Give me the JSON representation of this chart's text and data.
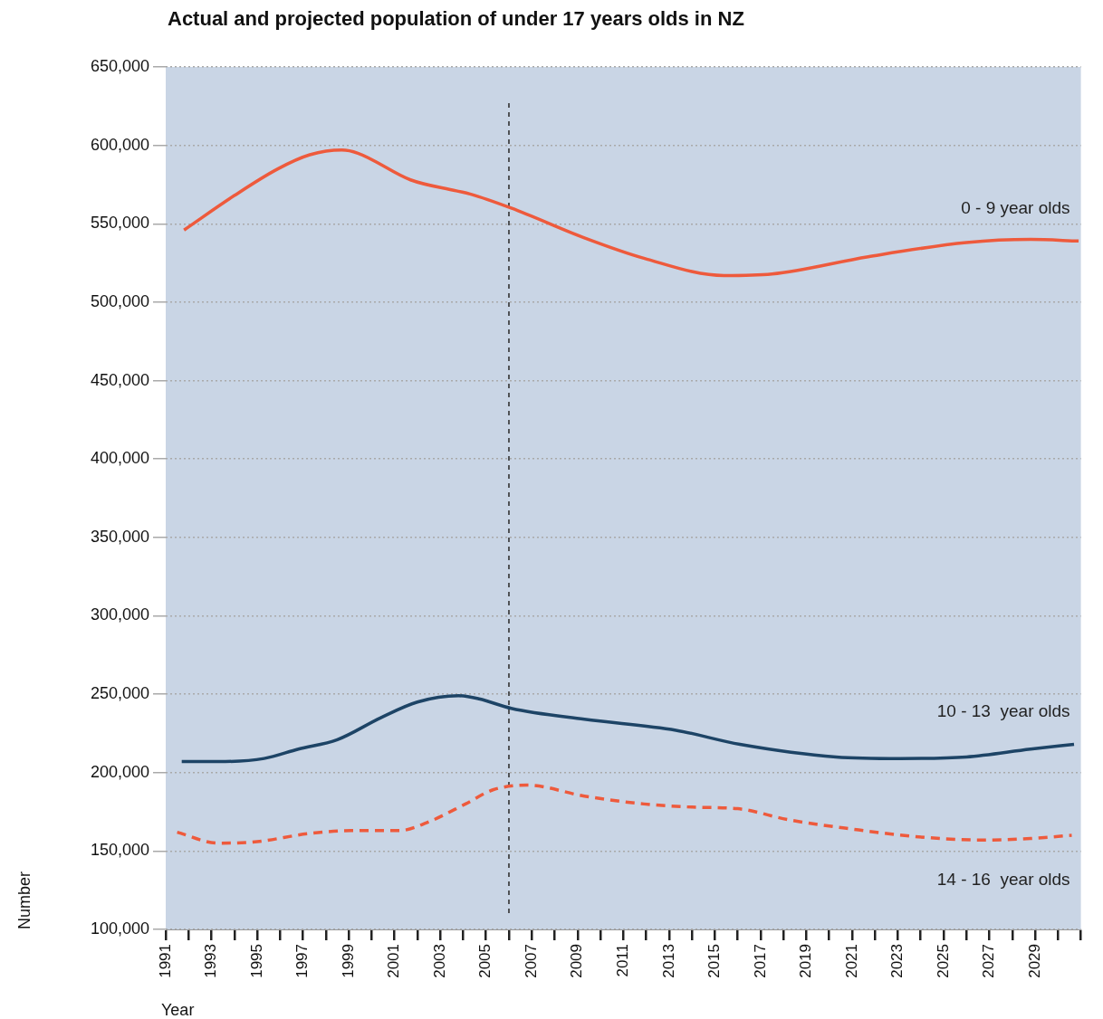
{
  "chart_data": {
    "type": "line",
    "title": "Actual and projected population of under 17 years olds in NZ",
    "xlabel": "Year",
    "ylabel": "Number",
    "xlim": [
      1991,
      2031
    ],
    "xticks": [
      {
        "value": 1991,
        "label": "1991"
      },
      {
        "value": 1992,
        "label": null
      },
      {
        "value": 1993,
        "label": "1993"
      },
      {
        "value": 1994,
        "label": null
      },
      {
        "value": 1995,
        "label": "1995"
      },
      {
        "value": 1996,
        "label": null
      },
      {
        "value": 1997,
        "label": "1997"
      },
      {
        "value": 1998,
        "label": null
      },
      {
        "value": 1999,
        "label": "1999"
      },
      {
        "value": 2000,
        "label": null
      },
      {
        "value": 2001,
        "label": "2001"
      },
      {
        "value": 2002,
        "label": null
      },
      {
        "value": 2003,
        "label": "2003"
      },
      {
        "value": 2004,
        "label": null
      },
      {
        "value": 2005,
        "label": "2005"
      },
      {
        "value": 2006,
        "label": null
      },
      {
        "value": 2007,
        "label": "2007"
      },
      {
        "value": 2008,
        "label": null
      },
      {
        "value": 2009,
        "label": "2009"
      },
      {
        "value": 2010,
        "label": null
      },
      {
        "value": 2011,
        "label": "2011"
      },
      {
        "value": 2012,
        "label": null
      },
      {
        "value": 2013,
        "label": "2013"
      },
      {
        "value": 2014,
        "label": null
      },
      {
        "value": 2015,
        "label": "2015"
      },
      {
        "value": 2016,
        "label": null
      },
      {
        "value": 2017,
        "label": "2017"
      },
      {
        "value": 2018,
        "label": null
      },
      {
        "value": 2019,
        "label": "2019"
      },
      {
        "value": 2020,
        "label": null
      },
      {
        "value": 2021,
        "label": "2021"
      },
      {
        "value": 2022,
        "label": null
      },
      {
        "value": 2023,
        "label": "2023"
      },
      {
        "value": 2024,
        "label": null
      },
      {
        "value": 2025,
        "label": "2025"
      },
      {
        "value": 2026,
        "label": null
      },
      {
        "value": 2027,
        "label": "2027"
      },
      {
        "value": 2028,
        "label": null
      },
      {
        "value": 2029,
        "label": "2029"
      },
      {
        "value": 2030,
        "label": null
      },
      {
        "value": 2031,
        "label": null
      }
    ],
    "ylim": [
      100000,
      650000
    ],
    "yticks": [
      {
        "value": 100000,
        "label": "100,000"
      },
      {
        "value": 150000,
        "label": "150,000"
      },
      {
        "value": 200000,
        "label": "200,000"
      },
      {
        "value": 250000,
        "label": "250,000"
      },
      {
        "value": 300000,
        "label": "300,000"
      },
      {
        "value": 350000,
        "label": "350,000"
      },
      {
        "value": 400000,
        "label": "400,000"
      },
      {
        "value": 450000,
        "label": "450,000"
      },
      {
        "value": 500000,
        "label": "500,000"
      },
      {
        "value": 550000,
        "label": "550,000"
      },
      {
        "value": 600000,
        "label": "600,000"
      },
      {
        "value": 650000,
        "label": "650,000"
      }
    ],
    "grid": "y",
    "legend": false,
    "marker": "none",
    "ref_lines": [
      {
        "axis": "x",
        "value": 2006,
        "color": "#333333",
        "line_style": "dashed"
      }
    ],
    "series": [
      {
        "name": "0 - 9 year olds",
        "color": "#ee5a3c",
        "line_style": "solid",
        "x": [
          1991.8,
          1994,
          1995.9,
          1997.3,
          1998.7,
          1999.4,
          2001.7,
          2003.7,
          2004.3,
          2006.1,
          2009.3,
          2011.9,
          2015.4,
          2017.5,
          2021.7,
          2026,
          2028.8,
          2030.9
        ],
        "values": [
          546000,
          568000,
          585000,
          594000,
          597000,
          595000,
          578000,
          571000,
          569000,
          560000,
          541000,
          528000,
          517000,
          518000,
          529000,
          538000,
          540000,
          539000
        ]
      },
      {
        "name": "10 - 13  year olds",
        "color": "#1d4466",
        "line_style": "solid",
        "x": [
          1991.7,
          1993.3,
          1995.3,
          1996.8,
          1998.5,
          2000.4,
          2002,
          2003.8,
          2004.7,
          2006.1,
          2009.3,
          2013.3,
          2016.1,
          2020.3,
          2023.1,
          2026,
          2028.8,
          2030.7
        ],
        "values": [
          207000,
          207000,
          209000,
          215000,
          221000,
          235000,
          245000,
          249000,
          247000,
          241000,
          234000,
          227000,
          218000,
          210000,
          209000,
          210000,
          215000,
          218000
        ]
      },
      {
        "name": "14 - 16  year olds",
        "color": "#ee5a3c",
        "line_style": "dashed",
        "x": [
          1991.5,
          1993.3,
          1995,
          1997.2,
          1999.1,
          2001.2,
          2002.4,
          2004.1,
          2005.3,
          2006.8,
          2009.3,
          2011.9,
          2014,
          2016,
          2018.2,
          2021,
          2023.9,
          2026.7,
          2028.8,
          2030.6
        ],
        "values": [
          162000,
          155000,
          156000,
          161000,
          163000,
          163000,
          168000,
          180000,
          189000,
          192000,
          185000,
          180000,
          178000,
          177000,
          170000,
          164000,
          159000,
          157000,
          158000,
          160000
        ]
      }
    ]
  }
}
